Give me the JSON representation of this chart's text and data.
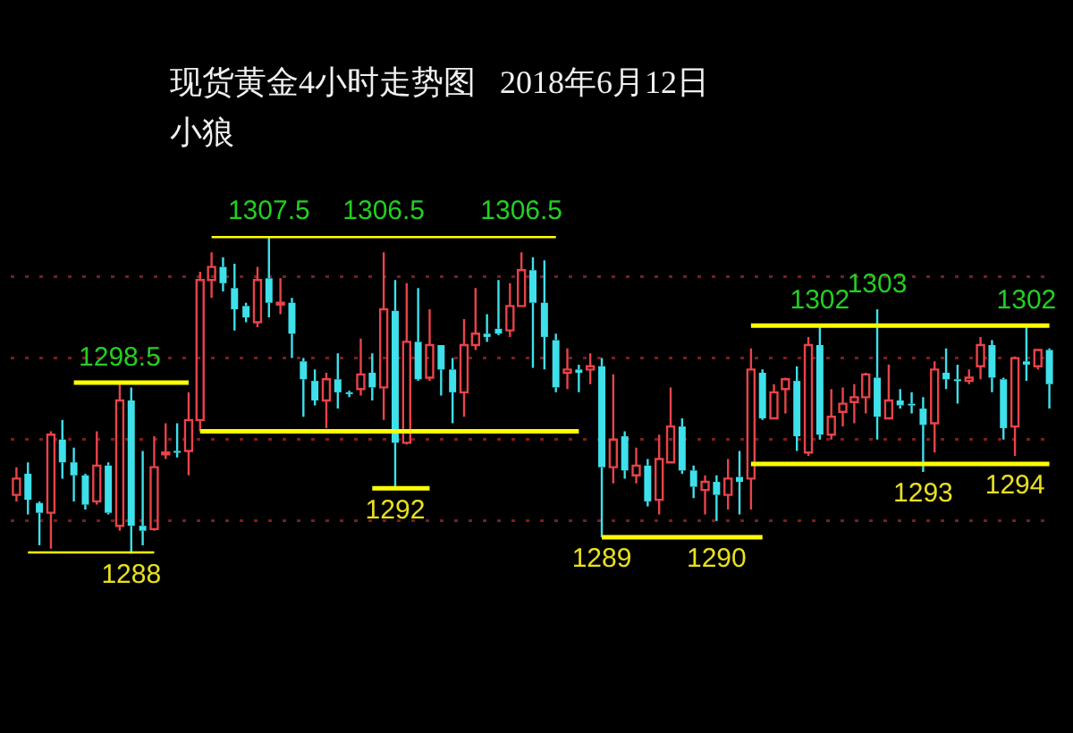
{
  "chart_data": {
    "type": "candlestick",
    "title": "现货黄金4小时走势图   2018年6月12日",
    "subtitle": "小狼",
    "categories": [
      null,
      null,
      null,
      null,
      null,
      null,
      null,
      null,
      null,
      null,
      null,
      null,
      null,
      null,
      null,
      null,
      null,
      null,
      null,
      null,
      null,
      null,
      null,
      null,
      null,
      null,
      null,
      null,
      null,
      null,
      null,
      null,
      null,
      null,
      null,
      null,
      null,
      null,
      null,
      null,
      null,
      null,
      null,
      null,
      null,
      null,
      null,
      null,
      null,
      null,
      null,
      null,
      null,
      null,
      null,
      null,
      null,
      null,
      null,
      null,
      null,
      null,
      null,
      null,
      null,
      null,
      null,
      null,
      null,
      null,
      null,
      null,
      null,
      null,
      null,
      null,
      null,
      null,
      null,
      null,
      null,
      null,
      null,
      null,
      null,
      null,
      null,
      null,
      null,
      null,
      null
    ],
    "yticks": [
      {
        "value": 1290,
        "label": null
      },
      {
        "value": 1295,
        "label": null
      },
      {
        "value": 1300,
        "label": null
      },
      {
        "value": 1305,
        "label": null
      }
    ],
    "grid": "y",
    "legend": false,
    "series": [
      {
        "type": "candlestick",
        "ohlc": [
          [
            1291.6,
            1293.3,
            1291.2,
            1292.6
          ],
          [
            1292.9,
            1293.6,
            1290.4,
            1291.3
          ],
          [
            1291.1,
            1291.2,
            1288.5,
            1290.5
          ],
          [
            1290.5,
            1295.5,
            1288.3,
            1295.3
          ],
          [
            1295.0,
            1296.2,
            1292.6,
            1293.6
          ],
          [
            1293.6,
            1294.5,
            1291.2,
            1292.8
          ],
          [
            1292.8,
            1292.9,
            1290.7,
            1291.0
          ],
          [
            1291.2,
            1295.5,
            1291.0,
            1293.4
          ],
          [
            1293.4,
            1293.6,
            1290.4,
            1290.5
          ],
          [
            1289.7,
            1298.5,
            1289.4,
            1297.4
          ],
          [
            1297.4,
            1298.2,
            1288.0,
            1289.7
          ],
          [
            1289.7,
            1294.3,
            1288.5,
            1289.4
          ],
          [
            1289.5,
            1295.2,
            1289.4,
            1293.3
          ],
          [
            1294.1,
            1296.0,
            1293.8,
            1294.2
          ],
          [
            1294.3,
            1296.0,
            1293.9,
            1294.2
          ],
          [
            1294.3,
            1297.9,
            1292.8,
            1296.2
          ],
          [
            1296.2,
            1305.3,
            1295.5,
            1304.8
          ],
          [
            1304.8,
            1306.5,
            1303.7,
            1305.6
          ],
          [
            1305.6,
            1306.2,
            1304.1,
            1304.6
          ],
          [
            1304.3,
            1305.8,
            1301.7,
            1303.0
          ],
          [
            1303.2,
            1303.4,
            1302.2,
            1302.5
          ],
          [
            1302.2,
            1305.6,
            1301.9,
            1304.8
          ],
          [
            1304.9,
            1307.5,
            1302.5,
            1303.4
          ],
          [
            1303.3,
            1304.9,
            1302.7,
            1303.4
          ],
          [
            1303.4,
            1303.7,
            1300.0,
            1301.5
          ],
          [
            1299.8,
            1300.0,
            1296.4,
            1298.7
          ],
          [
            1298.6,
            1299.3,
            1297.1,
            1297.4
          ],
          [
            1297.4,
            1299.1,
            1295.7,
            1298.7
          ],
          [
            1298.7,
            1300.3,
            1296.9,
            1297.9
          ],
          [
            1297.9,
            1298.0,
            1297.6,
            1297.8
          ],
          [
            1298.1,
            1301.2,
            1297.7,
            1299.0
          ],
          [
            1299.1,
            1300.3,
            1297.4,
            1298.2
          ],
          [
            1298.2,
            1306.5,
            1296.2,
            1303.0
          ],
          [
            1302.9,
            1304.8,
            1292.0,
            1294.8
          ],
          [
            1294.8,
            1304.6,
            1294.7,
            1301.0
          ],
          [
            1301.0,
            1304.3,
            1298.6,
            1298.7
          ],
          [
            1298.8,
            1303.0,
            1298.6,
            1300.8
          ],
          [
            1300.8,
            1300.8,
            1297.7,
            1299.3
          ],
          [
            1299.3,
            1300.0,
            1296.0,
            1297.9
          ],
          [
            1297.9,
            1302.4,
            1296.4,
            1300.8
          ],
          [
            1300.8,
            1304.3,
            1300.5,
            1301.5
          ],
          [
            1301.5,
            1302.7,
            1301.0,
            1301.3
          ],
          [
            1301.8,
            1304.8,
            1301.4,
            1301.5
          ],
          [
            1301.7,
            1304.6,
            1301.3,
            1303.2
          ],
          [
            1303.2,
            1306.5,
            1303.2,
            1305.4
          ],
          [
            1305.4,
            1306.2,
            1299.4,
            1303.4
          ],
          [
            1303.4,
            1306.0,
            1299.3,
            1301.3
          ],
          [
            1301.1,
            1301.5,
            1297.9,
            1298.2
          ],
          [
            1299.1,
            1300.6,
            1298.1,
            1299.3
          ],
          [
            1299.3,
            1299.6,
            1297.9,
            1299.1
          ],
          [
            1299.3,
            1300.3,
            1298.4,
            1299.5
          ],
          [
            1299.5,
            1300.0,
            1289.0,
            1293.3
          ],
          [
            1293.3,
            1299.0,
            1292.3,
            1295.0
          ],
          [
            1295.2,
            1295.5,
            1292.6,
            1293.1
          ],
          [
            1292.8,
            1294.5,
            1292.3,
            1293.4
          ],
          [
            1293.4,
            1293.8,
            1290.9,
            1291.2
          ],
          [
            1291.3,
            1295.3,
            1290.4,
            1293.8
          ],
          [
            1293.6,
            1298.2,
            1293.6,
            1295.8
          ],
          [
            1295.8,
            1296.3,
            1292.9,
            1293.1
          ],
          [
            1293.1,
            1293.4,
            1291.4,
            1292.1
          ],
          [
            1291.9,
            1292.8,
            1290.4,
            1292.4
          ],
          [
            1292.4,
            1292.8,
            1290.0,
            1291.6
          ],
          [
            1291.6,
            1293.8,
            1290.7,
            1292.6
          ],
          [
            1292.7,
            1294.3,
            1290.4,
            1292.4
          ],
          [
            1292.6,
            1300.6,
            1290.7,
            1299.3
          ],
          [
            1299.1,
            1299.3,
            1296.2,
            1296.3
          ],
          [
            1296.3,
            1298.4,
            1296.3,
            1297.9
          ],
          [
            1298.1,
            1298.8,
            1296.6,
            1298.7
          ],
          [
            1298.6,
            1299.5,
            1294.3,
            1295.2
          ],
          [
            1294.2,
            1301.3,
            1294.0,
            1300.8
          ],
          [
            1300.8,
            1302.0,
            1295.0,
            1295.3
          ],
          [
            1295.3,
            1298.1,
            1295.0,
            1296.4
          ],
          [
            1296.7,
            1298.2,
            1295.8,
            1297.2
          ],
          [
            1297.3,
            1298.4,
            1296.0,
            1297.6
          ],
          [
            1297.6,
            1299.1,
            1296.6,
            1299.0
          ],
          [
            1298.8,
            1303.0,
            1295.0,
            1296.4
          ],
          [
            1296.3,
            1299.6,
            1296.3,
            1297.4
          ],
          [
            1297.4,
            1298.1,
            1296.9,
            1297.1
          ],
          [
            1297.2,
            1297.9,
            1296.6,
            1297.1
          ],
          [
            1296.9,
            1297.6,
            1293.0,
            1295.9
          ],
          [
            1296.0,
            1299.8,
            1294.2,
            1299.3
          ],
          [
            1299.1,
            1300.6,
            1298.1,
            1298.7
          ],
          [
            1298.7,
            1299.6,
            1297.2,
            1298.6
          ],
          [
            1298.6,
            1299.3,
            1298.4,
            1298.8
          ],
          [
            1299.5,
            1301.3,
            1298.7,
            1300.8
          ],
          [
            1300.8,
            1301.1,
            1297.9,
            1298.8
          ],
          [
            1298.7,
            1298.8,
            1295.0,
            1295.7
          ],
          [
            1295.8,
            1300.1,
            1294.0,
            1300.0
          ],
          [
            1299.8,
            1302.0,
            1298.6,
            1299.6
          ],
          [
            1299.5,
            1300.5,
            1299.3,
            1300.5
          ],
          [
            1300.5,
            1300.6,
            1296.9,
            1298.4
          ]
        ],
        "colors": [
          "#e8434a",
          "#3ee0ea",
          "#3ee0ea",
          "#e8434a",
          "#3ee0ea",
          "#3ee0ea",
          "#3ee0ea",
          "#e8434a",
          "#3ee0ea",
          "#e8434a",
          "#3ee0ea",
          "#3ee0ea",
          "#e8434a",
          "#e8434a",
          "#3ee0ea",
          "#e8434a",
          "#e8434a",
          "#e8434a",
          "#3ee0ea",
          "#3ee0ea",
          "#3ee0ea",
          "#e8434a",
          "#3ee0ea",
          "#e8434a",
          "#3ee0ea",
          "#3ee0ea",
          "#3ee0ea",
          "#e8434a",
          "#3ee0ea",
          "#3ee0ea",
          "#e8434a",
          "#3ee0ea",
          "#e8434a",
          "#3ee0ea",
          "#e8434a",
          "#3ee0ea",
          "#e8434a",
          "#3ee0ea",
          "#3ee0ea",
          "#e8434a",
          "#e8434a",
          "#3ee0ea",
          "#3ee0ea",
          "#e8434a",
          "#e8434a",
          "#3ee0ea",
          "#3ee0ea",
          "#3ee0ea",
          "#e8434a",
          "#3ee0ea",
          "#e8434a",
          "#3ee0ea",
          "#e8434a",
          "#3ee0ea",
          "#e8434a",
          "#3ee0ea",
          "#e8434a",
          "#e8434a",
          "#3ee0ea",
          "#3ee0ea",
          "#e8434a",
          "#3ee0ea",
          "#e8434a",
          "#3ee0ea",
          "#e8434a",
          "#3ee0ea",
          "#e8434a",
          "#e8434a",
          "#3ee0ea",
          "#e8434a",
          "#3ee0ea",
          "#e8434a",
          "#e8434a",
          "#e8434a",
          "#e8434a",
          "#3ee0ea",
          "#e8434a",
          "#3ee0ea",
          "#3ee0ea",
          "#3ee0ea",
          "#e8434a",
          "#3ee0ea",
          "#3ee0ea",
          "#e8434a",
          "#e8434a",
          "#3ee0ea",
          "#3ee0ea",
          "#e8434a",
          "#3ee0ea",
          "#e8434a",
          "#3ee0ea"
        ],
        "value_labels": [
          null,
          null,
          null,
          null,
          null,
          null,
          null,
          null,
          null,
          "1298.5",
          "1288",
          null,
          null,
          null,
          null,
          null,
          null,
          null,
          null,
          null,
          null,
          null,
          "1307.5",
          null,
          null,
          null,
          null,
          null,
          null,
          null,
          null,
          null,
          "1306.5",
          "1292",
          null,
          null,
          null,
          null,
          null,
          null,
          null,
          null,
          null,
          null,
          "1306.5",
          null,
          null,
          null,
          null,
          null,
          null,
          "1289",
          null,
          null,
          null,
          null,
          null,
          null,
          null,
          null,
          null,
          "1290",
          null,
          null,
          null,
          null,
          null,
          null,
          null,
          null,
          "1302",
          null,
          null,
          null,
          null,
          "1303",
          null,
          null,
          null,
          "1293",
          null,
          null,
          null,
          null,
          null,
          null,
          null,
          "1294",
          "1302",
          null,
          null
        ]
      },
      {
        "type": "line",
        "color": "#ffff00",
        "values": [
          null,
          null,
          null,
          null,
          null,
          1298.5,
          1298.5,
          1298.5,
          1298.5,
          1298.5,
          1298.5,
          1298.5,
          1298.5,
          1298.5,
          1298.5,
          1298.5,
          null,
          null,
          null,
          null,
          null,
          null,
          null,
          null,
          null,
          null,
          null,
          null,
          null,
          null,
          null,
          null,
          null,
          null,
          null,
          null,
          null,
          null,
          null,
          null,
          null,
          null,
          null,
          null,
          null,
          null,
          null,
          null,
          null,
          null,
          null,
          null,
          null,
          null,
          null,
          null,
          null,
          null,
          null,
          null,
          null,
          null,
          null,
          null,
          null,
          null,
          null,
          null,
          null,
          null,
          null,
          null,
          null,
          null,
          null,
          null,
          null,
          null,
          null,
          null,
          null,
          null,
          null,
          null,
          null,
          null,
          null,
          null,
          null,
          null,
          null
        ]
      },
      {
        "type": "line",
        "color": "#ffff00",
        "values": [
          null,
          1288,
          1288,
          1288,
          1288,
          1288,
          1288,
          1288,
          1288,
          1288,
          1288,
          1288,
          1288,
          null,
          null,
          null,
          null,
          null,
          null,
          null,
          null,
          null,
          null,
          null,
          null,
          null,
          null,
          null,
          null,
          null,
          null,
          null,
          null,
          null,
          null,
          null,
          null,
          null,
          null,
          null,
          null,
          null,
          null,
          null,
          null,
          null,
          null,
          null,
          null,
          null,
          null,
          null,
          null,
          null,
          null,
          null,
          null,
          null,
          null,
          null,
          null,
          null,
          null,
          null,
          null,
          null,
          null,
          null,
          null,
          null,
          null,
          null,
          null,
          null,
          null,
          null,
          null,
          null,
          null,
          null,
          null,
          null,
          null,
          null,
          null,
          null,
          null,
          null,
          null,
          null,
          null
        ]
      },
      {
        "type": "line",
        "color": "#ffff00",
        "values": [
          null,
          null,
          null,
          null,
          null,
          null,
          null,
          null,
          null,
          null,
          null,
          null,
          null,
          null,
          null,
          null,
          null,
          1307.5,
          1307.5,
          1307.5,
          1307.5,
          1307.5,
          1307.5,
          1307.5,
          1307.5,
          1307.5,
          1307.5,
          1307.5,
          1307.5,
          1307.5,
          1307.5,
          1307.5,
          1307.5,
          1307.5,
          1307.5,
          1307.5,
          1307.5,
          1307.5,
          1307.5,
          1307.5,
          1307.5,
          1307.5,
          1307.5,
          1307.5,
          1307.5,
          1307.5,
          1307.5,
          1307.5,
          null,
          null,
          null,
          null,
          null,
          null,
          null,
          null,
          null,
          null,
          null,
          null,
          null,
          null,
          null,
          null,
          null,
          null,
          null,
          null,
          null,
          null,
          null,
          null,
          null,
          null,
          null,
          null,
          null,
          null,
          null,
          null,
          null,
          null,
          null,
          null,
          null,
          null,
          null,
          null,
          null,
          null,
          null
        ]
      },
      {
        "type": "line",
        "color": "#ffff00",
        "values": [
          null,
          null,
          null,
          null,
          null,
          null,
          null,
          null,
          null,
          null,
          null,
          null,
          null,
          null,
          null,
          null,
          1295.5,
          1295.5,
          1295.5,
          1295.5,
          1295.5,
          1295.5,
          1295.5,
          1295.5,
          1295.5,
          1295.5,
          1295.5,
          1295.5,
          1295.5,
          1295.5,
          1295.5,
          1295.5,
          1295.5,
          1295.5,
          1295.5,
          1295.5,
          1295.5,
          1295.5,
          1295.5,
          1295.5,
          1295.5,
          1295.5,
          1295.5,
          1295.5,
          1295.5,
          1295.5,
          1295.5,
          1295.5,
          1295.5,
          1295.5,
          null,
          null,
          null,
          null,
          null,
          null,
          null,
          null,
          null,
          null,
          null,
          null,
          null,
          null,
          null,
          null,
          null,
          null,
          null,
          null,
          null,
          null,
          null,
          null,
          null,
          null,
          null,
          null,
          null,
          null,
          null,
          null,
          null,
          null,
          null,
          null,
          null,
          null,
          null,
          null,
          null
        ]
      },
      {
        "type": "line",
        "color": "#ffff00",
        "values": [
          null,
          null,
          null,
          null,
          null,
          null,
          null,
          null,
          null,
          null,
          null,
          null,
          null,
          null,
          null,
          null,
          null,
          null,
          null,
          null,
          null,
          null,
          null,
          null,
          null,
          null,
          null,
          null,
          null,
          null,
          null,
          1292,
          1292,
          1292,
          1292,
          1292,
          1292,
          null,
          null,
          null,
          null,
          null,
          null,
          null,
          null,
          null,
          null,
          null,
          null,
          null,
          null,
          null,
          null,
          null,
          null,
          null,
          null,
          null,
          null,
          null,
          null,
          null,
          null,
          null,
          null,
          null,
          null,
          null,
          null,
          null,
          null,
          null,
          null,
          null,
          null,
          null,
          null,
          null,
          null,
          null,
          null,
          null,
          null,
          null,
          null,
          null,
          null,
          null,
          null,
          null,
          null
        ]
      },
      {
        "type": "line",
        "color": "#ffff00",
        "values": [
          null,
          null,
          null,
          null,
          null,
          null,
          null,
          null,
          null,
          null,
          null,
          null,
          null,
          null,
          null,
          null,
          null,
          null,
          null,
          null,
          null,
          null,
          null,
          null,
          null,
          null,
          null,
          null,
          null,
          null,
          null,
          null,
          null,
          null,
          null,
          null,
          null,
          null,
          null,
          null,
          null,
          null,
          null,
          null,
          null,
          null,
          null,
          null,
          null,
          null,
          null,
          1289,
          1289,
          1289,
          1289,
          1289,
          1289,
          1289,
          1289,
          1289,
          1289,
          1289,
          1289,
          1289,
          1289,
          1289,
          null,
          null,
          null,
          null,
          null,
          null,
          null,
          null,
          null,
          null,
          null,
          null,
          null,
          null,
          null,
          null,
          null,
          null,
          null,
          null,
          null,
          null,
          null,
          null,
          null
        ]
      },
      {
        "type": "line",
        "color": "#ffff00",
        "values": [
          null,
          null,
          null,
          null,
          null,
          null,
          null,
          null,
          null,
          null,
          null,
          null,
          null,
          null,
          null,
          null,
          null,
          null,
          null,
          null,
          null,
          null,
          null,
          null,
          null,
          null,
          null,
          null,
          null,
          null,
          null,
          null,
          null,
          null,
          null,
          null,
          null,
          null,
          null,
          null,
          null,
          null,
          null,
          null,
          null,
          null,
          null,
          null,
          null,
          null,
          null,
          null,
          null,
          null,
          null,
          null,
          null,
          null,
          null,
          null,
          null,
          null,
          null,
          null,
          1302,
          1302,
          1302,
          1302,
          1302,
          1302,
          1302,
          1302,
          1302,
          1302,
          1302,
          1302,
          1302,
          1302,
          1302,
          1302,
          1302,
          1302,
          1302,
          1302,
          1302,
          1302,
          1302,
          1302,
          1302,
          1302,
          1302
        ]
      },
      {
        "type": "line",
        "color": "#ffff00",
        "values": [
          null,
          null,
          null,
          null,
          null,
          null,
          null,
          null,
          null,
          null,
          null,
          null,
          null,
          null,
          null,
          null,
          null,
          null,
          null,
          null,
          null,
          null,
          null,
          null,
          null,
          null,
          null,
          null,
          null,
          null,
          null,
          null,
          null,
          null,
          null,
          null,
          null,
          null,
          null,
          null,
          null,
          null,
          null,
          null,
          null,
          null,
          null,
          null,
          null,
          null,
          null,
          null,
          null,
          null,
          null,
          null,
          null,
          null,
          null,
          null,
          null,
          null,
          null,
          null,
          1293.5,
          1293.5,
          1293.5,
          1293.5,
          1293.5,
          1293.5,
          1293.5,
          1293.5,
          1293.5,
          1293.5,
          1293.5,
          1293.5,
          1293.5,
          1293.5,
          1293.5,
          1293.5,
          1293.5,
          1293.5,
          1293.5,
          1293.5,
          1293.5,
          1293.5,
          1293.5,
          1293.5,
          1293.5,
          1293.5,
          1293.5
        ]
      }
    ]
  }
}
